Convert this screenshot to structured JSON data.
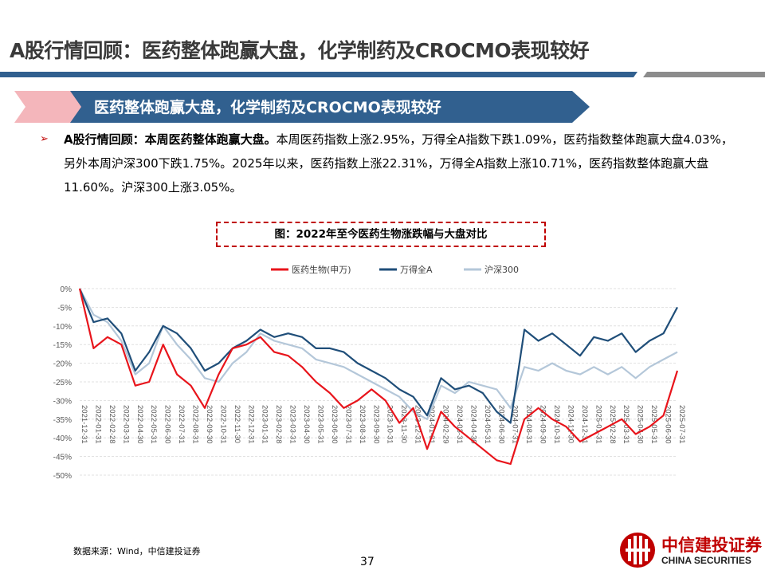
{
  "header": {
    "title": "A股行情回顾：医药整体跑赢大盘，化学制药及CROCMO表现较好",
    "banner": "医药整体跑赢大盘，化学制药及CROCMO表现较好"
  },
  "bullet": {
    "lead": "A股行情回顾：本周医药整体跑赢大盘。",
    "body": "本周医药指数上涨2.95%，万得全A指数下跌1.09%，医药指数整体跑赢大盘4.03%，另外本周沪深300下跌1.75%。2025年以来，医药指数上涨22.31%，万得全A指数上涨10.71%，医药指数整体跑赢大盘11.60%。沪深300上涨3.05%。"
  },
  "figure": {
    "caption": "图：2022年至今医药生物涨跌幅与大盘对比"
  },
  "footer": {
    "source": "数据来源：Wind，中信建投证券",
    "page": "37",
    "logo_cn": "中信建投证券",
    "logo_en": "CHINA SECURITIES"
  },
  "colors": {
    "accent_red": "#e8141b",
    "navy": "#1f4e79",
    "light_blue": "#b4c7d9",
    "banner_blue": "#31608f",
    "banner_pink": "#f4b6bb"
  },
  "chart_data": {
    "type": "line",
    "title": "",
    "xlabel": "",
    "ylabel": "",
    "ylim": [
      -50,
      0
    ],
    "yticks": [
      "0%",
      "-5%",
      "-10%",
      "-15%",
      "-20%",
      "-25%",
      "-30%",
      "-35%",
      "-40%",
      "-45%",
      "-50%"
    ],
    "legend_position": "top",
    "grid": "horizontal-dashed",
    "categories": [
      "2021-12-31",
      "2022-01-31",
      "2022-02-28",
      "2022-03-31",
      "2022-04-30",
      "2022-05-31",
      "2022-06-30",
      "2022-07-31",
      "2022-08-31",
      "2022-09-30",
      "2022-10-31",
      "2022-11-30",
      "2022-12-31",
      "2023-01-31",
      "2023-02-28",
      "2023-03-31",
      "2023-04-30",
      "2023-05-31",
      "2023-06-30",
      "2023-07-31",
      "2023-08-31",
      "2023-09-30",
      "2023-10-31",
      "2023-11-30",
      "2023-12-31",
      "2024-01-31",
      "2024-02-29",
      "2024-03-31",
      "2024-04-30",
      "2024-05-31",
      "2024-06-30",
      "2024-07-31",
      "2024-08-31",
      "2024-09-30",
      "2024-10-31",
      "2024-11-30",
      "2024-12-31",
      "2025-01-31",
      "2025-02-28",
      "2025-03-31",
      "2025-04-30",
      "2025-05-31",
      "2025-06-30",
      "2025-07-31"
    ],
    "series": [
      {
        "name": "医药生物(申万)",
        "color": "#e8141b",
        "values": [
          0,
          -16,
          -13,
          -15,
          -26,
          -25,
          -15,
          -23,
          -26,
          -32,
          -23,
          -16,
          -15,
          -13,
          -17,
          -18,
          -21,
          -25,
          -28,
          -32,
          -30,
          -27,
          -30,
          -36,
          -32,
          -43,
          -33,
          -37,
          -40,
          -43,
          -46,
          -47,
          -35,
          -32,
          -35,
          -37,
          -41,
          -39,
          -37,
          -35,
          -39,
          -37,
          -34,
          -22
        ]
      },
      {
        "name": "万得全A",
        "color": "#1f4e79",
        "values": [
          0,
          -9,
          -8,
          -12,
          -22,
          -17,
          -10,
          -12,
          -16,
          -22,
          -20,
          -16,
          -14,
          -11,
          -13,
          -12,
          -13,
          -16,
          -16,
          -17,
          -20,
          -22,
          -24,
          -27,
          -29,
          -34,
          -24,
          -27,
          -26,
          -28,
          -33,
          -36,
          -11,
          -14,
          -12,
          -15,
          -18,
          -13,
          -14,
          -12,
          -17,
          -14,
          -12,
          -5
        ]
      },
      {
        "name": "沪深300",
        "color": "#b4c7d9",
        "values": [
          0,
          -7,
          -9,
          -14,
          -23,
          -20,
          -10,
          -15,
          -19,
          -24,
          -25,
          -20,
          -17,
          -12,
          -14,
          -15,
          -16,
          -19,
          -20,
          -21,
          -23,
          -25,
          -27,
          -29,
          -33,
          -35,
          -26,
          -28,
          -25,
          -26,
          -27,
          -32,
          -21,
          -22,
          -20,
          -22,
          -23,
          -21,
          -23,
          -21,
          -24,
          -21,
          -19,
          -17
        ]
      }
    ]
  }
}
